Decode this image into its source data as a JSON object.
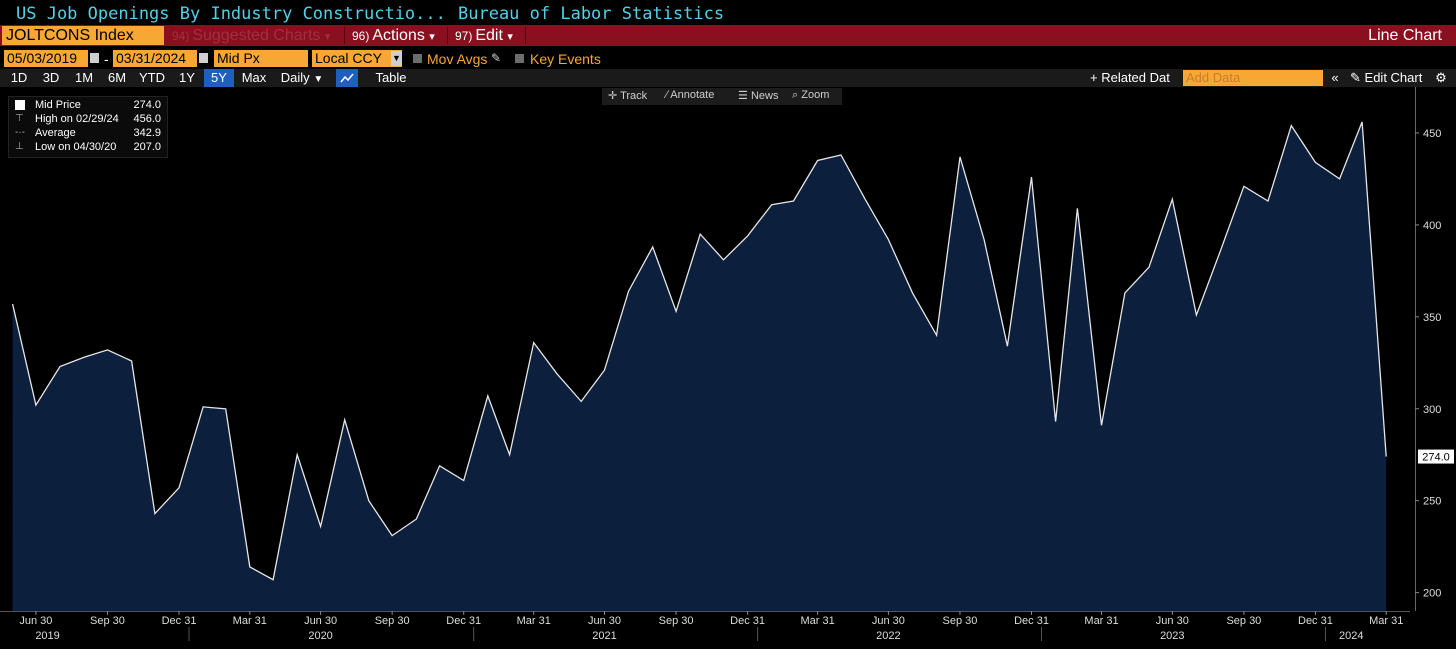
{
  "window": {
    "title": "US Job Openings By Industry Constructio...",
    "source": "Bureau of Labor Statistics"
  },
  "toolbar": {
    "ticker": "JOLTCONS Index",
    "menus": [
      {
        "num": "94)",
        "label": "Suggested Charts",
        "caret": "▾",
        "enabled": false
      },
      {
        "num": "96)",
        "label": "Actions",
        "caret": "▾",
        "enabled": true
      },
      {
        "num": "97)",
        "label": "Edit",
        "caret": "▾",
        "enabled": true
      }
    ],
    "view_label": "Line Chart"
  },
  "controls": {
    "start_date": "05/03/2019",
    "end_date": "03/31/2024",
    "date_separator": "-",
    "price_field": "Mid Px",
    "currency": "Local CCY",
    "mov_avgs": "Mov Avgs",
    "key_events": "Key Events"
  },
  "ranges": {
    "items": [
      "1D",
      "3D",
      "1M",
      "6M",
      "YTD",
      "1Y",
      "5Y",
      "Max"
    ],
    "active": "5Y",
    "frequency": "Daily",
    "table_label": "Table",
    "related_label": "+ Related Dat",
    "add_data_placeholder": "Add Data",
    "edit_chart_label": "Edit Chart"
  },
  "tools": [
    "Track",
    "Annotate",
    "News",
    "Zoom"
  ],
  "legend": {
    "rows": [
      {
        "label": "Mid Price",
        "value": "274.0"
      },
      {
        "label": "High on 02/29/24",
        "value": "456.0"
      },
      {
        "label": "Average",
        "value": "342.9"
      },
      {
        "label": "Low on 04/30/20",
        "value": "207.0"
      }
    ]
  },
  "colors": {
    "accent_orange": "#f7a733",
    "toolbar_red": "#8a0f1f",
    "title_cyan": "#4fd1e8",
    "area_fill": "#0c1f3c",
    "line": "#e6e6e6",
    "active_range": "#1f5fbf"
  },
  "chart_data": {
    "type": "area",
    "series": [
      {
        "name": "Mid Price",
        "x": [
          "2019-05-31",
          "2019-06-30",
          "2019-07-31",
          "2019-08-31",
          "2019-09-30",
          "2019-10-31",
          "2019-11-30",
          "2019-12-31",
          "2020-01-31",
          "2020-02-29",
          "2020-03-31",
          "2020-04-30",
          "2020-05-31",
          "2020-06-30",
          "2020-07-31",
          "2020-08-31",
          "2020-09-30",
          "2020-10-31",
          "2020-11-30",
          "2020-12-31",
          "2021-01-31",
          "2021-02-28",
          "2021-03-31",
          "2021-04-30",
          "2021-05-31",
          "2021-06-30",
          "2021-07-31",
          "2021-08-31",
          "2021-09-30",
          "2021-10-31",
          "2021-11-30",
          "2021-12-31",
          "2022-01-31",
          "2022-02-28",
          "2022-03-31",
          "2022-04-30",
          "2022-05-31",
          "2022-06-30",
          "2022-07-31",
          "2022-08-31",
          "2022-09-30",
          "2022-10-31",
          "2022-11-30",
          "2022-12-31",
          "2023-01-31",
          "2023-02-28",
          "2023-03-31",
          "2023-04-30",
          "2023-05-31",
          "2023-06-30",
          "2023-07-31",
          "2023-08-31",
          "2023-09-30",
          "2023-10-31",
          "2023-11-30",
          "2023-12-31",
          "2024-01-31",
          "2024-02-29",
          "2024-03-31"
        ],
        "values": [
          357,
          302,
          323,
          328,
          332,
          326,
          243,
          257,
          301,
          300,
          214,
          207,
          275,
          236,
          294,
          250,
          231,
          240,
          269,
          261,
          307,
          275,
          336,
          319,
          304,
          321,
          364,
          388,
          353,
          395,
          381,
          394,
          411,
          413,
          435,
          438,
          414,
          392,
          363,
          340,
          437,
          392,
          334,
          426,
          293,
          409,
          291,
          363,
          377,
          414,
          351,
          386,
          421,
          413,
          454,
          434,
          425,
          456,
          274
        ]
      }
    ],
    "title": "US Job Openings By Industry Constructio...",
    "ylim": [
      190,
      475
    ],
    "yticks": [
      200,
      250,
      300,
      350,
      400,
      450
    ],
    "xticks": [
      {
        "date": "2019-06-30",
        "label": "Jun 30"
      },
      {
        "date": "2019-09-30",
        "label": "Sep 30"
      },
      {
        "date": "2019-12-31",
        "label": "Dec 31"
      },
      {
        "date": "2020-03-31",
        "label": "Mar 31"
      },
      {
        "date": "2020-06-30",
        "label": "Jun 30"
      },
      {
        "date": "2020-09-30",
        "label": "Sep 30"
      },
      {
        "date": "2020-12-31",
        "label": "Dec 31"
      },
      {
        "date": "2021-03-31",
        "label": "Mar 31"
      },
      {
        "date": "2021-06-30",
        "label": "Jun 30"
      },
      {
        "date": "2021-09-30",
        "label": "Sep 30"
      },
      {
        "date": "2021-12-31",
        "label": "Dec 31"
      },
      {
        "date": "2022-03-31",
        "label": "Mar 31"
      },
      {
        "date": "2022-06-30",
        "label": "Jun 30"
      },
      {
        "date": "2022-09-30",
        "label": "Sep 30"
      },
      {
        "date": "2022-12-31",
        "label": "Dec 31"
      },
      {
        "date": "2023-03-31",
        "label": "Mar 31"
      },
      {
        "date": "2023-06-30",
        "label": "Jun 30"
      },
      {
        "date": "2023-09-30",
        "label": "Sep 30"
      },
      {
        "date": "2023-12-31",
        "label": "Dec 31"
      },
      {
        "date": "2024-03-31",
        "label": "Mar 31"
      }
    ],
    "year_labels": [
      {
        "date": "2019-07-15",
        "label": "2019"
      },
      {
        "date": "2020-06-30",
        "label": "2020"
      },
      {
        "date": "2021-06-30",
        "label": "2021"
      },
      {
        "date": "2022-06-30",
        "label": "2022"
      },
      {
        "date": "2023-06-30",
        "label": "2023"
      },
      {
        "date": "2024-02-15",
        "label": "2024"
      }
    ],
    "last_value_label": "274.0",
    "grid": false,
    "legend_position": "top-left"
  }
}
